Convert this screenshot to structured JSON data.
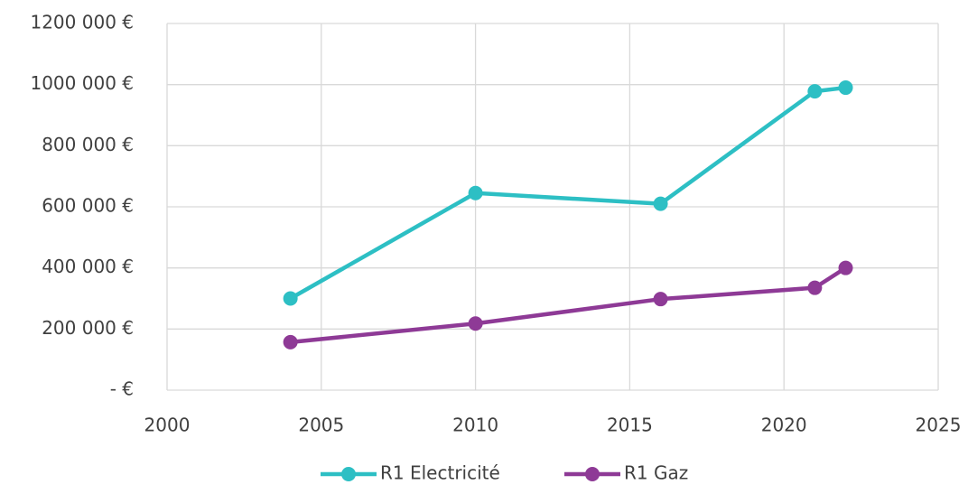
{
  "chart_data": {
    "type": "line",
    "x": [
      2004,
      2010,
      2016,
      2021,
      2022
    ],
    "series": [
      {
        "name": "R1 Electricité",
        "color": "#2dbfc4",
        "values": [
          300000,
          645000,
          610000,
          978000,
          990000
        ]
      },
      {
        "name": "R1 Gaz",
        "color": "#8e3a96",
        "values": [
          157000,
          218000,
          298000,
          335000,
          400000
        ]
      }
    ],
    "xlim": [
      2000,
      2025
    ],
    "xticks": [
      2000,
      2005,
      2010,
      2015,
      2020,
      2025
    ],
    "ylim": [
      0,
      1200000
    ],
    "yticks": [
      {
        "value": 0,
        "label": "-   €"
      },
      {
        "value": 200000,
        "label": "200 000 €"
      },
      {
        "value": 400000,
        "label": "400 000 €"
      },
      {
        "value": 600000,
        "label": "600 000 €"
      },
      {
        "value": 800000,
        "label": "800 000 €"
      },
      {
        "value": 1000000,
        "label": "1000 000 €"
      },
      {
        "value": 1200000,
        "label": "1200 000 €"
      }
    ],
    "grid": true,
    "legend": "bottom"
  }
}
